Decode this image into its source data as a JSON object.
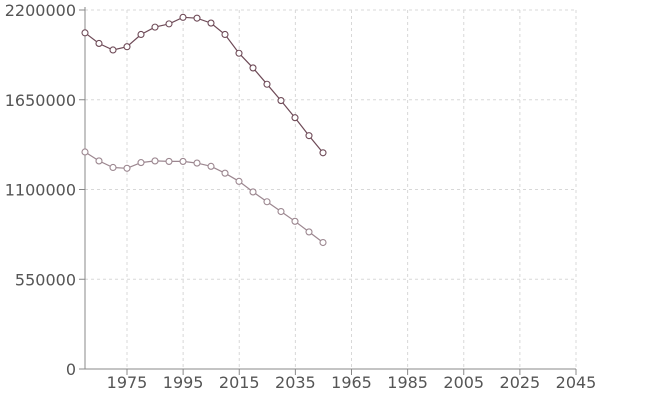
{
  "chart_data": {
    "type": "line",
    "x_tick_labels": [
      "1975",
      "1995",
      "2015",
      "2035",
      "1965",
      "1985",
      "2005",
      "2025",
      "2045"
    ],
    "y_tick_labels": [
      "0",
      "550000",
      "1100000",
      "1650000",
      "2200000"
    ],
    "ylim": [
      0,
      2200000
    ],
    "grid": true,
    "legend": "none",
    "series": [
      {
        "color": "#6e4a57",
        "x": [
          1965,
          1970,
          1975,
          1980,
          1985,
          1990,
          1995,
          2000,
          2005,
          2010,
          2015,
          2020,
          2025,
          2030,
          2035,
          2040,
          2045,
          2050
        ],
        "values": [
          2060000,
          1995000,
          1955000,
          1975000,
          2050000,
          2095000,
          2115000,
          2155000,
          2150000,
          2120000,
          2050000,
          1935000,
          1845000,
          1745000,
          1645000,
          1540000,
          1430000,
          1325000
        ]
      },
      {
        "color": "#9c8790",
        "x": [
          1965,
          1970,
          1975,
          1980,
          1985,
          1990,
          1995,
          2000,
          2005,
          2010,
          2015,
          2020,
          2025,
          2030,
          2035,
          2040,
          2045,
          2050
        ],
        "values": [
          1330000,
          1275000,
          1235000,
          1230000,
          1265000,
          1275000,
          1272000,
          1272000,
          1262000,
          1242000,
          1200000,
          1150000,
          1085000,
          1025000,
          965000,
          905000,
          840000,
          775000
        ]
      }
    ]
  }
}
